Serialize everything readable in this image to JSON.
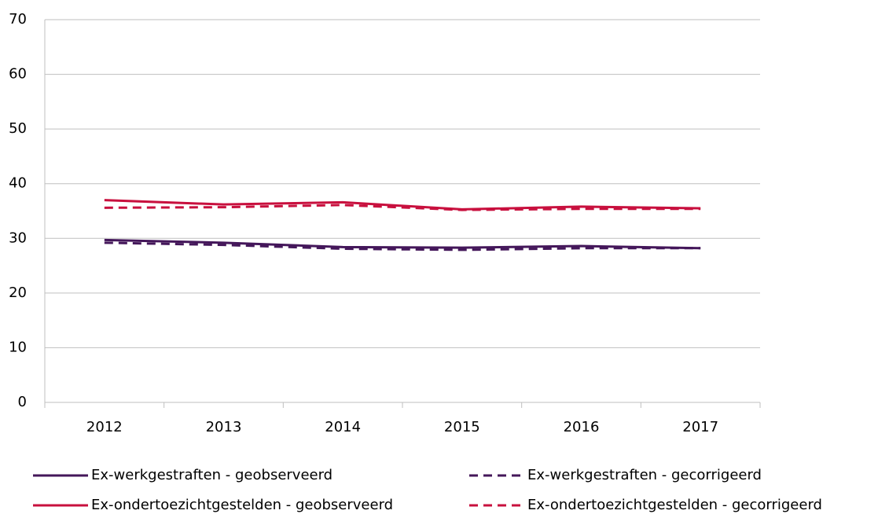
{
  "chart_data": {
    "type": "line",
    "categories": [
      "2012",
      "2013",
      "2014",
      "2015",
      "2016",
      "2017"
    ],
    "series": [
      {
        "name": "Ex-werkgestraften - geobserveerd",
        "color": "#44175a",
        "dashed": false,
        "values": [
          29.7,
          29.2,
          28.4,
          28.3,
          28.6,
          28.2
        ]
      },
      {
        "name": "Ex-werkgestraften - gecorrigeerd",
        "color": "#44175a",
        "dashed": true,
        "values": [
          29.2,
          28.8,
          28.1,
          27.9,
          28.2,
          28.2
        ]
      },
      {
        "name": "Ex-ondertoezichtgestelden - geobserveerd",
        "color": "#c8103e",
        "dashed": false,
        "values": [
          37.0,
          36.2,
          36.6,
          35.3,
          35.8,
          35.5
        ]
      },
      {
        "name": "Ex-ondertoezichtgestelden - gecorrigeerd",
        "color": "#c8103e",
        "dashed": true,
        "values": [
          35.6,
          35.7,
          36.1,
          35.2,
          35.4,
          35.4
        ]
      }
    ],
    "ylim": [
      0,
      70
    ],
    "yticks": [
      0,
      10,
      20,
      30,
      40,
      50,
      60,
      70
    ],
    "grid": true,
    "legend": "bottom"
  }
}
